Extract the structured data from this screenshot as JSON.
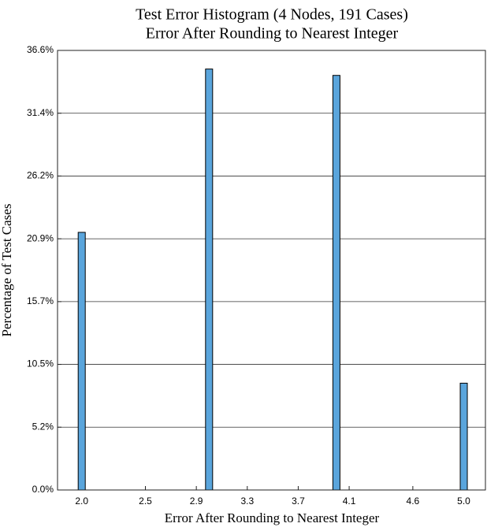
{
  "chart_data": {
    "type": "bar",
    "title": "Test Error Histogram (4 Nodes, 191 Cases)",
    "subtitle": "Error After Rounding to Nearest Integer",
    "x_label": "Error After Rounding to Nearest Integer",
    "y_label": "Percentage of Test Cases",
    "x": [
      2,
      3,
      4,
      5
    ],
    "values": [
      21.47,
      35.08,
      34.55,
      8.9
    ],
    "color": "#5aa5dc",
    "xlim": [
      1.81,
      5.17
    ],
    "xticks": [
      {
        "value": 2.0,
        "label": "2.0"
      },
      2.5,
      2.9,
      3.3,
      3.7,
      4.1,
      4.6,
      {
        "value": 5.0,
        "label": "5.0"
      }
    ],
    "ylim": [
      0,
      36.631
    ],
    "yticks": [
      {
        "value": 0,
        "label": "0.0%"
      },
      {
        "value": 5.233,
        "label": "5.2%"
      },
      {
        "value": 10.466,
        "label": "10.5%"
      },
      {
        "value": 15.699,
        "label": "15.7%"
      },
      {
        "value": 20.932,
        "label": "20.9%"
      },
      {
        "value": 26.165,
        "label": "26.2%"
      },
      {
        "value": 31.398,
        "label": "31.4%"
      },
      {
        "value": 36.631,
        "label": "36.6%"
      }
    ],
    "grid": true
  }
}
